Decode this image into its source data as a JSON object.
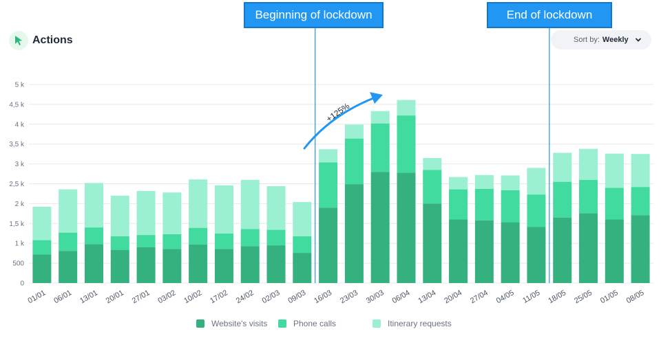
{
  "header": {
    "title": "Actions"
  },
  "sort": {
    "label": "Sort by:",
    "value": "Weekly"
  },
  "annotations": {
    "start_banner": "Beginning of lockdown",
    "end_banner": "End of lockdown",
    "growth_label": "+125%"
  },
  "colors": {
    "website": "#35b07f",
    "phone": "#41da9f",
    "itinerary": "#9af0d1",
    "marker": "#2196f3",
    "grid": "#e6e8eb",
    "tick": "#6b7280"
  },
  "chart_data": {
    "type": "bar",
    "stacked": true,
    "categories": [
      "01/01",
      "06/01",
      "13/01",
      "20/01",
      "27/01",
      "03/02",
      "10/02",
      "17/02",
      "24/02",
      "02/03",
      "09/03",
      "16/03",
      "23/03",
      "30/03",
      "06/04",
      "13/04",
      "20/04",
      "27/04",
      "04/05",
      "11/05",
      "18/05",
      "25/05",
      "01/05",
      "08/05"
    ],
    "series": [
      {
        "name": "Website's visits",
        "values": [
          720,
          810,
          980,
          830,
          900,
          860,
          970,
          860,
          930,
          950,
          760,
          1900,
          2490,
          2800,
          2780,
          2000,
          1600,
          1580,
          1530,
          1410,
          1650,
          1760,
          1600,
          1710
        ]
      },
      {
        "name": "Phone calls",
        "values": [
          360,
          460,
          420,
          350,
          310,
          370,
          420,
          390,
          430,
          390,
          420,
          1140,
          1150,
          1220,
          1440,
          850,
          760,
          790,
          810,
          820,
          900,
          840,
          800,
          710
        ]
      },
      {
        "name": "Itinerary requests",
        "values": [
          840,
          1090,
          1120,
          1020,
          1110,
          1050,
          1220,
          1210,
          1240,
          1100,
          860,
          330,
          350,
          310,
          390,
          300,
          310,
          350,
          370,
          670,
          730,
          780,
          860,
          830
        ]
      }
    ],
    "ylim": [
      0,
      5000
    ],
    "yticks": [
      0,
      500,
      1000,
      1500,
      2000,
      2500,
      3000,
      3500,
      4000,
      4500,
      5000
    ],
    "ytick_labels": [
      "0",
      "500",
      "1 k",
      "1,5 k",
      "2 k",
      "2,5 k",
      "3 k",
      "3,5 k",
      "4 k",
      "4,5 k",
      "5 k"
    ],
    "grid": true,
    "legend_position": "bottom-center",
    "lockdown_start_after": "09/03",
    "lockdown_end_before": "18/05"
  }
}
